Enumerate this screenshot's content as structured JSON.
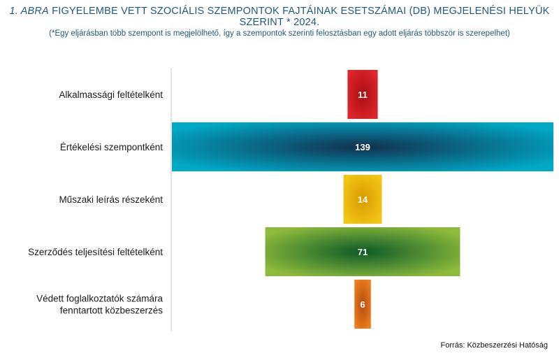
{
  "title": {
    "number": "1. ABRA",
    "text": "FIGYELEMBE VETT SZOCIÁLIS SZEMPONTOK FAJTÁINAK ESETSZÁMAI (DB) MEGJELENÉSI HELYÜK SZERINT * 2024."
  },
  "subtitle": "(*Egy eljárásban több szempont is megjelölhető, így a szempontok szerinti felosztásban egy adott eljárás többször is szerepelhet)",
  "source": "Forrás: Közbeszerzési Hatóság",
  "chart_data": {
    "type": "bar",
    "orientation": "horizontal-funnel",
    "categories": [
      "Alkalmassági feltételként",
      "Értékelési szempontként",
      "Műszaki leírás részeként",
      "Szerződés teljesítési feltételként",
      [
        "Védett foglalkoztatók számára",
        "fenntartott közbeszerzés"
      ]
    ],
    "values": [
      11,
      139,
      14,
      71,
      6
    ],
    "colors": [
      [
        "#a80f14",
        "#e0252b"
      ],
      [
        "#12304f",
        "#00a9c6"
      ],
      [
        "#d99a00",
        "#f3c616"
      ],
      [
        "#0d5a28",
        "#8ebb3b"
      ],
      [
        "#b24e12",
        "#f07e1c"
      ]
    ],
    "xlim": [
      0,
      139
    ],
    "grid": false
  }
}
